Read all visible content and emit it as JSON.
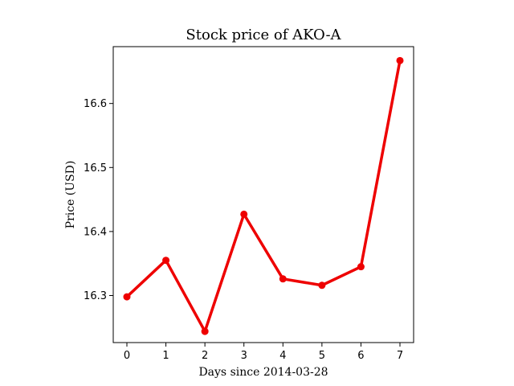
{
  "chart_data": {
    "type": "line",
    "title": "Stock price of AKO-A",
    "xlabel": "Days since 2014-03-28",
    "ylabel": "Price (USD)",
    "x": [
      0,
      1,
      2,
      3,
      4,
      5,
      6,
      7
    ],
    "series": [
      {
        "values": [
          16.298,
          16.355,
          16.244,
          16.427,
          16.326,
          16.316,
          16.345,
          16.667
        ],
        "color": "#ee0000"
      }
    ],
    "xticks": [
      "0",
      "1",
      "2",
      "3",
      "4",
      "5",
      "6",
      "7"
    ],
    "yticks": [
      "16.3",
      "16.4",
      "16.5",
      "16.6"
    ],
    "xlim": [
      -0.35,
      7.35
    ],
    "ylim": [
      16.2265,
      16.6888
    ],
    "grid": false,
    "legend": "none"
  }
}
